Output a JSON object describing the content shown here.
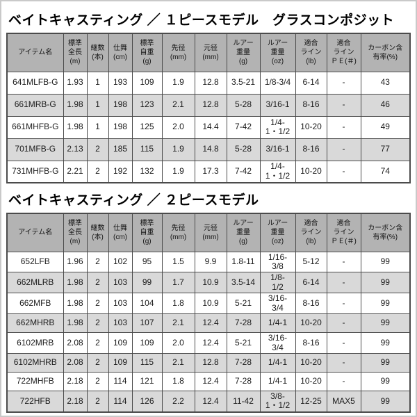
{
  "colors": {
    "page_border": "#c9c9c9",
    "header_bg": "#b3b3b3",
    "row_alt_bg": "#d9d9d9",
    "grid_line": "#4b4b4b",
    "title_text": "#000000"
  },
  "tables": [
    {
      "title": "ベイトキャスティング ／ １ピースモデル　グラスコンポジット",
      "columns": [
        "アイテム名",
        "標準\n全長\n(m)",
        "継数\n(本)",
        "仕舞\n(cm)",
        "標準\n自重\n(g)",
        "先径\n(mm)",
        "元径\n(mm)",
        "ルアー\n重量\n(g)",
        "ルアー\n重量\n(oz)",
        "適合\nライン\n(lb)",
        "適合\nライン\nＰＥ(＃)",
        "カーボン含\n有率(%)"
      ],
      "rows": [
        [
          "641MLFB-G",
          "1.93",
          "1",
          "193",
          "109",
          "1.9",
          "12.8",
          "3.5-21",
          "1/8-3/4",
          "6-14",
          "-",
          "43"
        ],
        [
          "661MRB-G",
          "1.98",
          "1",
          "198",
          "123",
          "2.1",
          "12.8",
          "5-28",
          "3/16-1",
          "8-16",
          "-",
          "46"
        ],
        [
          "661MHFB-G",
          "1.98",
          "1",
          "198",
          "125",
          "2.0",
          "14.4",
          "7-42",
          "1/4-\n1・1/2",
          "10-20",
          "-",
          "49"
        ],
        [
          "701MFB-G",
          "2.13",
          "2",
          "185",
          "115",
          "1.9",
          "14.8",
          "5-28",
          "3/16-1",
          "8-16",
          "-",
          "77"
        ],
        [
          "731MHFB-G",
          "2.21",
          "2",
          "192",
          "132",
          "1.9",
          "17.3",
          "7-42",
          "1/4-\n1・1/2",
          "10-20",
          "-",
          "74"
        ]
      ]
    },
    {
      "title": "ベイトキャスティング ／ ２ピースモデル",
      "columns": [
        "アイテム名",
        "標準\n全長\n(m)",
        "継数\n(本)",
        "仕舞\n(cm)",
        "標準\n自重\n(g)",
        "先径\n(mm)",
        "元径\n(mm)",
        "ルアー\n重量\n(g)",
        "ルアー\n重量\n(oz)",
        "適合\nライン\n(lb)",
        "適合\nライン\nＰＥ(＃)",
        "カーボン含\n有率(%)"
      ],
      "rows": [
        [
          "652LFB",
          "1.96",
          "2",
          "102",
          "95",
          "1.5",
          "9.9",
          "1.8-11",
          "1/16-\n3/8",
          "5-12",
          "-",
          "99"
        ],
        [
          "662MLRB",
          "1.98",
          "2",
          "103",
          "99",
          "1.7",
          "10.9",
          "3.5-14",
          "1/8-\n1/2",
          "6-14",
          "-",
          "99"
        ],
        [
          "662MFB",
          "1.98",
          "2",
          "103",
          "104",
          "1.8",
          "10.9",
          "5-21",
          "3/16-\n3/4",
          "8-16",
          "-",
          "99"
        ],
        [
          "662MHRB",
          "1.98",
          "2",
          "103",
          "107",
          "2.1",
          "12.4",
          "7-28",
          "1/4-1",
          "10-20",
          "-",
          "99"
        ],
        [
          "6102MRB",
          "2.08",
          "2",
          "109",
          "109",
          "2.0",
          "12.4",
          "5-21",
          "3/16-\n3/4",
          "8-16",
          "-",
          "99"
        ],
        [
          "6102MHRB",
          "2.08",
          "2",
          "109",
          "115",
          "2.1",
          "12.8",
          "7-28",
          "1/4-1",
          "10-20",
          "-",
          "99"
        ],
        [
          "722MHFB",
          "2.18",
          "2",
          "114",
          "121",
          "1.8",
          "12.4",
          "7-28",
          "1/4-1",
          "10-20",
          "-",
          "99"
        ],
        [
          "722HFB",
          "2.18",
          "2",
          "114",
          "126",
          "2.2",
          "12.4",
          "11-42",
          "3/8-\n1・1/2",
          "12-25",
          "MAX5",
          "99"
        ]
      ]
    }
  ]
}
